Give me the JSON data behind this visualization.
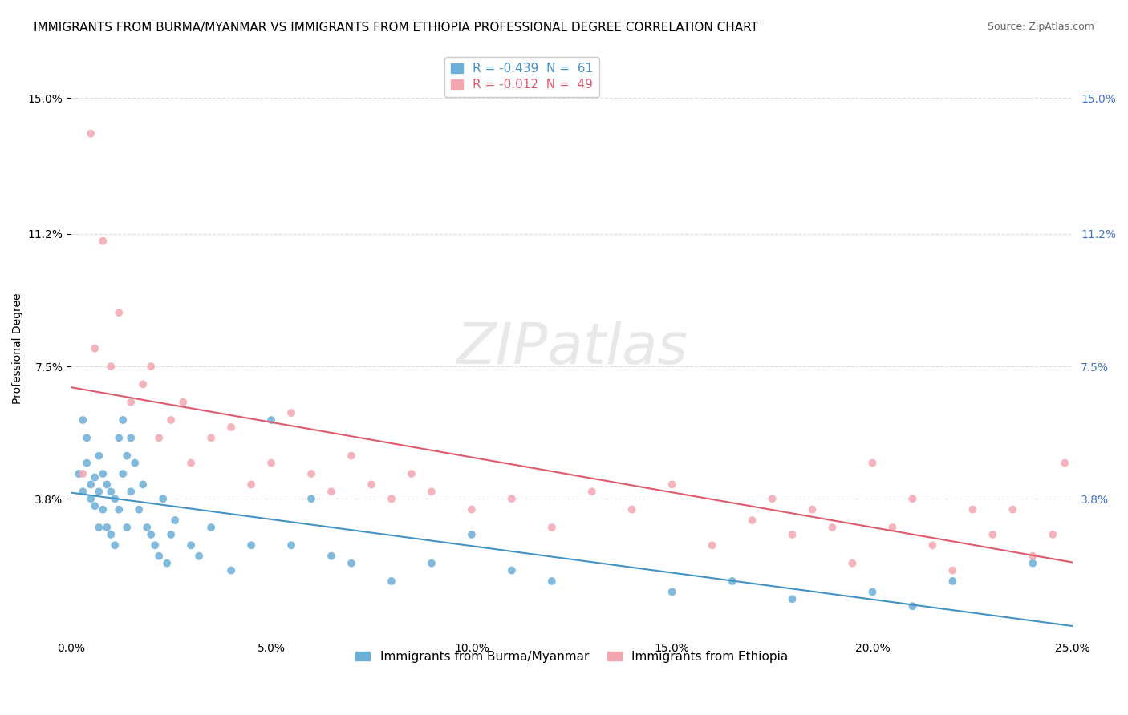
{
  "title": "IMMIGRANTS FROM BURMA/MYANMAR VS IMMIGRANTS FROM ETHIOPIA PROFESSIONAL DEGREE CORRELATION CHART",
  "source": "Source: ZipAtlas.com",
  "xlabel": "",
  "ylabel": "Professional Degree",
  "xlim": [
    0.0,
    0.25
  ],
  "ylim": [
    0.0,
    0.16
  ],
  "xticks": [
    0.0,
    0.05,
    0.1,
    0.15,
    0.2,
    0.25
  ],
  "xticklabels": [
    "0.0%",
    "5.0%",
    "10.0%",
    "15.0%",
    "20.0%",
    "25.0%"
  ],
  "ytick_positions": [
    0.038,
    0.075,
    0.112,
    0.15
  ],
  "ytick_labels": [
    "3.8%",
    "7.5%",
    "11.2%",
    "15.0%"
  ],
  "right_ytick_labels": [
    "3.8%",
    "7.5%",
    "11.2%",
    "15.0%"
  ],
  "blue_color": "#6baed6",
  "pink_color": "#f4a6b0",
  "blue_line_color": "#4292c6",
  "pink_line_color": "#e05a6e",
  "legend_blue_label": "R = -0.439  N =  61",
  "legend_pink_label": "R = -0.012  N =  49",
  "blue_legend_label": "Immigrants from Burma/Myanmar",
  "pink_legend_label": "Immigrants from Ethiopia",
  "watermark": "ZIPatlas",
  "blue_R": -0.439,
  "blue_N": 61,
  "pink_R": -0.012,
  "pink_N": 49,
  "blue_x": [
    0.002,
    0.003,
    0.003,
    0.004,
    0.004,
    0.005,
    0.005,
    0.006,
    0.006,
    0.007,
    0.007,
    0.007,
    0.008,
    0.008,
    0.009,
    0.009,
    0.01,
    0.01,
    0.011,
    0.011,
    0.012,
    0.012,
    0.013,
    0.013,
    0.014,
    0.014,
    0.015,
    0.015,
    0.016,
    0.017,
    0.018,
    0.019,
    0.02,
    0.021,
    0.022,
    0.023,
    0.024,
    0.025,
    0.026,
    0.03,
    0.032,
    0.035,
    0.04,
    0.045,
    0.05,
    0.055,
    0.06,
    0.065,
    0.07,
    0.08,
    0.09,
    0.1,
    0.11,
    0.12,
    0.15,
    0.165,
    0.18,
    0.2,
    0.21,
    0.22,
    0.24
  ],
  "blue_y": [
    0.045,
    0.06,
    0.04,
    0.055,
    0.048,
    0.042,
    0.038,
    0.044,
    0.036,
    0.05,
    0.04,
    0.03,
    0.045,
    0.035,
    0.042,
    0.03,
    0.04,
    0.028,
    0.038,
    0.025,
    0.055,
    0.035,
    0.06,
    0.045,
    0.05,
    0.03,
    0.055,
    0.04,
    0.048,
    0.035,
    0.042,
    0.03,
    0.028,
    0.025,
    0.022,
    0.038,
    0.02,
    0.028,
    0.032,
    0.025,
    0.022,
    0.03,
    0.018,
    0.025,
    0.06,
    0.025,
    0.038,
    0.022,
    0.02,
    0.015,
    0.02,
    0.028,
    0.018,
    0.015,
    0.012,
    0.015,
    0.01,
    0.012,
    0.008,
    0.015,
    0.02
  ],
  "pink_x": [
    0.003,
    0.005,
    0.006,
    0.008,
    0.01,
    0.012,
    0.015,
    0.018,
    0.02,
    0.022,
    0.025,
    0.028,
    0.03,
    0.035,
    0.04,
    0.045,
    0.05,
    0.055,
    0.06,
    0.065,
    0.07,
    0.075,
    0.08,
    0.085,
    0.09,
    0.1,
    0.11,
    0.12,
    0.13,
    0.14,
    0.15,
    0.16,
    0.17,
    0.175,
    0.18,
    0.185,
    0.19,
    0.195,
    0.2,
    0.205,
    0.21,
    0.215,
    0.22,
    0.225,
    0.23,
    0.235,
    0.24,
    0.245,
    0.248
  ],
  "pink_y": [
    0.045,
    0.14,
    0.08,
    0.11,
    0.075,
    0.09,
    0.065,
    0.07,
    0.075,
    0.055,
    0.06,
    0.065,
    0.048,
    0.055,
    0.058,
    0.042,
    0.048,
    0.062,
    0.045,
    0.04,
    0.05,
    0.042,
    0.038,
    0.045,
    0.04,
    0.035,
    0.038,
    0.03,
    0.04,
    0.035,
    0.042,
    0.025,
    0.032,
    0.038,
    0.028,
    0.035,
    0.03,
    0.02,
    0.048,
    0.03,
    0.038,
    0.025,
    0.018,
    0.035,
    0.028,
    0.035,
    0.022,
    0.028,
    0.048
  ],
  "grid_color": "#dddddd",
  "background_color": "#ffffff",
  "title_fontsize": 11,
  "axis_label_fontsize": 10,
  "tick_fontsize": 10,
  "legend_fontsize": 10,
  "source_fontsize": 9
}
